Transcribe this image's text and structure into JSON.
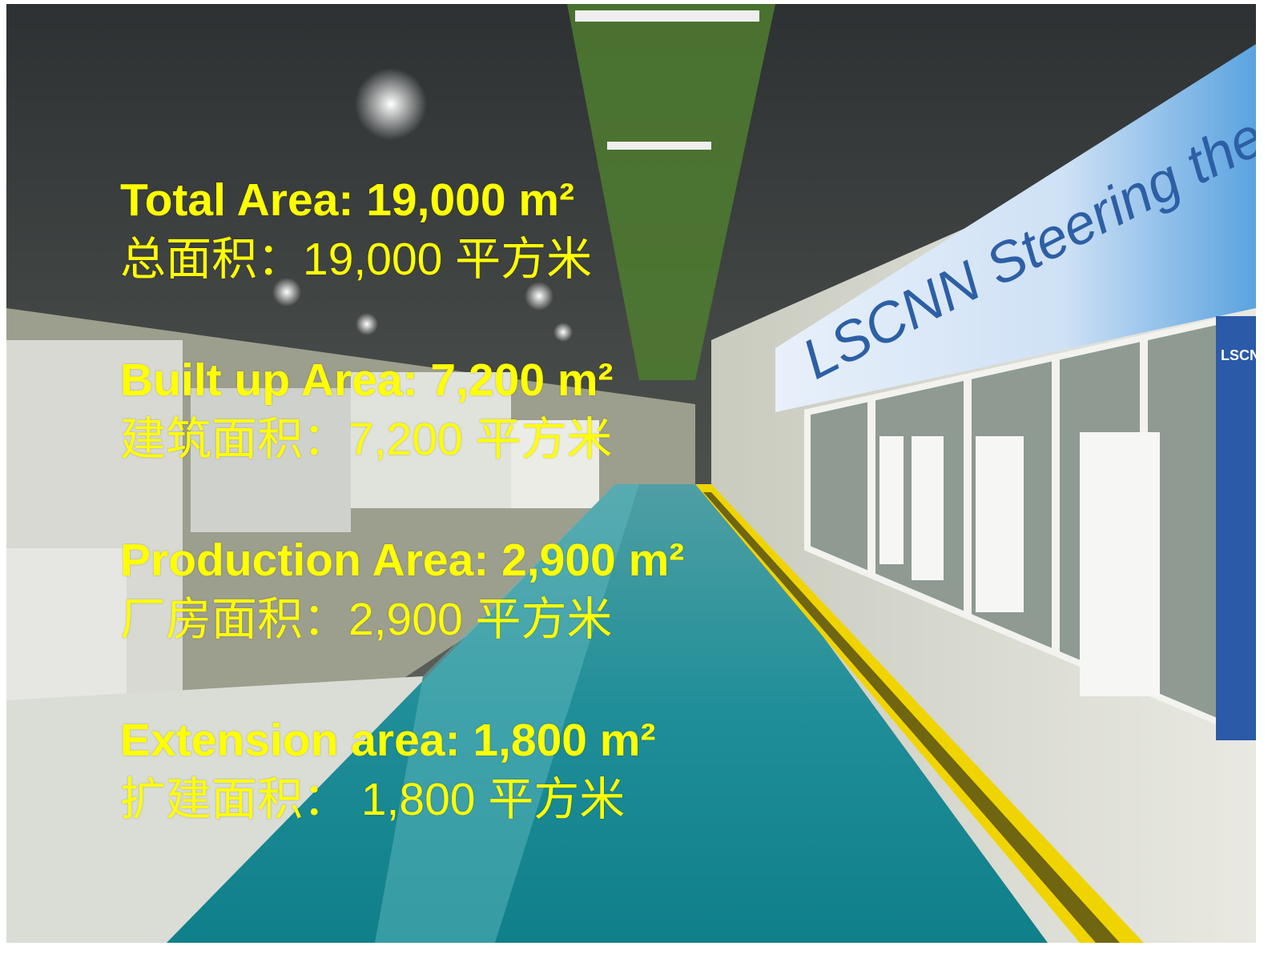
{
  "overlay": {
    "items": [
      {
        "en": "Total Area: 19,000 m²",
        "zh": "总面积：19,000 平方米"
      },
      {
        "en": "Built up Area: 7,200 m²",
        "zh": "建筑面积：7,200 平方米"
      },
      {
        "en": "Production Area: 2,900 m²",
        "zh": "厂房面积：2,900 平方米"
      },
      {
        "en": "Extension area: 1,800 m²",
        "zh": "扩建面积： 1,800 平方米"
      }
    ]
  },
  "banner": {
    "text": "LSCNN Steering the Right W",
    "sign": "LSCNN"
  }
}
